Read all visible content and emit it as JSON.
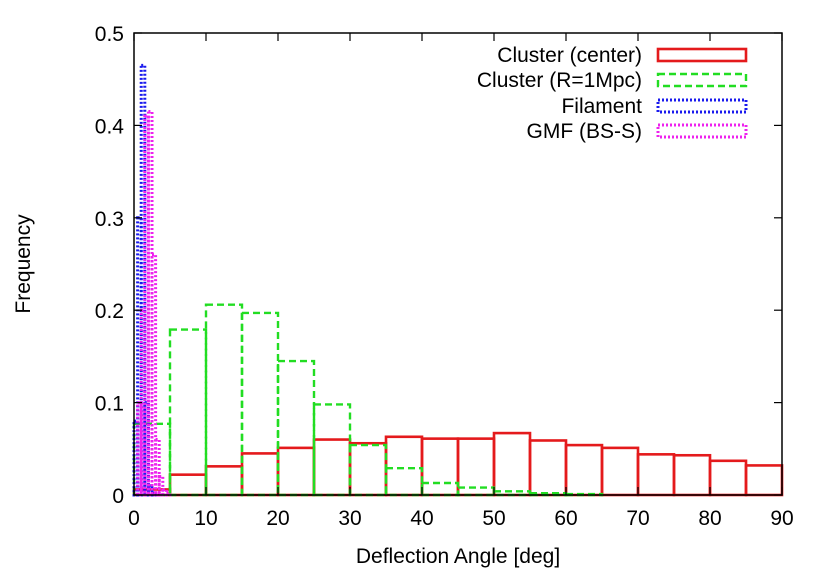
{
  "chart_data": {
    "type": "bar",
    "title": "",
    "xlabel": "Deflection Angle [deg]",
    "ylabel": "Frequency",
    "xlim": [
      0,
      90
    ],
    "ylim": [
      0,
      0.5
    ],
    "xticks": [
      "0",
      "10",
      "20",
      "30",
      "40",
      "50",
      "60",
      "70",
      "80",
      "90"
    ],
    "yticks": [
      "0",
      "0.1",
      "0.2",
      "0.3",
      "0.4",
      "0.5"
    ],
    "grid": false,
    "legend_position": "top-right",
    "series": [
      {
        "name": "Cluster (center)",
        "color": "#e41a1c",
        "line_style": "solid",
        "bins": [
          [
            0,
            5,
            0.006
          ],
          [
            5,
            10,
            0.022
          ],
          [
            10,
            15,
            0.031
          ],
          [
            15,
            20,
            0.045
          ],
          [
            20,
            25,
            0.051
          ],
          [
            25,
            30,
            0.06
          ],
          [
            30,
            35,
            0.056
          ],
          [
            35,
            40,
            0.063
          ],
          [
            40,
            45,
            0.061
          ],
          [
            45,
            50,
            0.061
          ],
          [
            50,
            55,
            0.067
          ],
          [
            55,
            60,
            0.059
          ],
          [
            60,
            65,
            0.054
          ],
          [
            65,
            70,
            0.051
          ],
          [
            70,
            75,
            0.044
          ],
          [
            75,
            80,
            0.043
          ],
          [
            80,
            85,
            0.037
          ],
          [
            85,
            90,
            0.032
          ]
        ]
      },
      {
        "name": "Cluster (R=1Mpc)",
        "color": "#22dd22",
        "line_style": "dashed",
        "bins": [
          [
            0,
            5,
            0.077
          ],
          [
            5,
            10,
            0.179
          ],
          [
            10,
            15,
            0.206
          ],
          [
            15,
            20,
            0.197
          ],
          [
            20,
            25,
            0.145
          ],
          [
            25,
            30,
            0.098
          ],
          [
            30,
            35,
            0.054
          ],
          [
            35,
            40,
            0.029
          ],
          [
            40,
            45,
            0.013
          ],
          [
            45,
            50,
            0.008
          ],
          [
            50,
            55,
            0.004
          ],
          [
            55,
            60,
            0.002
          ],
          [
            60,
            65,
            0.001
          ],
          [
            65,
            70,
            0.0
          ],
          [
            70,
            75,
            0.0
          ],
          [
            75,
            80,
            0.0
          ],
          [
            80,
            85,
            0.0
          ],
          [
            85,
            90,
            0.0
          ]
        ]
      },
      {
        "name": "Filament",
        "color": "#1a1aee",
        "line_style": "dotted",
        "bins": [
          [
            0,
            0.5,
            0.08
          ],
          [
            0.5,
            1,
            0.3
          ],
          [
            1,
            1.5,
            0.465
          ],
          [
            1.5,
            2,
            0.1
          ],
          [
            2,
            2.5,
            0.01
          ],
          [
            2.5,
            3,
            0.002
          ],
          [
            3,
            3.5,
            0.0
          ],
          [
            3.5,
            4,
            0.0
          ],
          [
            4,
            4.5,
            0.0
          ],
          [
            4.5,
            5,
            0.0
          ]
        ]
      },
      {
        "name": "GMF (BS-S)",
        "color": "#ee22ee",
        "line_style": "dotted",
        "bins": [
          [
            0,
            0.5,
            0.0
          ],
          [
            0.5,
            1,
            0.1
          ],
          [
            1,
            1.5,
            0.2
          ],
          [
            1.5,
            2,
            0.41
          ],
          [
            2,
            2.5,
            0.415
          ],
          [
            2.5,
            3,
            0.26
          ],
          [
            3,
            3.5,
            0.06
          ],
          [
            3.5,
            4,
            0.02
          ],
          [
            4,
            4.5,
            0.006
          ],
          [
            4.5,
            5,
            0.002
          ]
        ]
      }
    ]
  }
}
